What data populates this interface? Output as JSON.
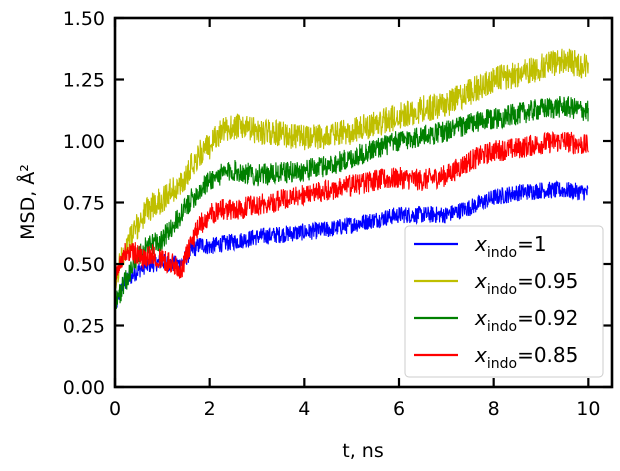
{
  "chart_data": {
    "type": "line",
    "xlabel": "t, ns",
    "ylabel": "MSD, Å²",
    "xlim": [
      0,
      10.5
    ],
    "ylim": [
      0,
      1.5
    ],
    "xticks": [
      "0",
      "2",
      "4",
      "6",
      "8",
      "10"
    ],
    "yticks": [
      "0.00",
      "0.25",
      "0.50",
      "0.75",
      "1.00",
      "1.25",
      "1.50"
    ],
    "grid": false,
    "legend_position": "lower-right",
    "series": [
      {
        "name": "x_indo=1",
        "legend_main": "x",
        "legend_sub": "indo",
        "legend_value": "=1",
        "color": "#0000ff",
        "x": [
          0,
          0.1,
          0.2,
          0.4,
          0.6,
          0.8,
          1.0,
          1.2,
          1.4,
          1.6,
          1.8,
          2.0,
          2.2,
          2.5,
          3.0,
          3.5,
          4.0,
          4.5,
          5.0,
          5.5,
          6.0,
          6.5,
          7.0,
          7.5,
          8.0,
          8.5,
          9.0,
          9.5,
          10.0
        ],
        "values": [
          0.32,
          0.38,
          0.42,
          0.46,
          0.49,
          0.5,
          0.51,
          0.5,
          0.5,
          0.55,
          0.58,
          0.57,
          0.58,
          0.59,
          0.61,
          0.62,
          0.63,
          0.64,
          0.66,
          0.68,
          0.7,
          0.7,
          0.7,
          0.73,
          0.77,
          0.79,
          0.8,
          0.8,
          0.79
        ],
        "amp": 0.035
      },
      {
        "name": "x_indo=0.95",
        "legend_main": "x",
        "legend_sub": "indo",
        "legend_value": "=0.95",
        "color": "#bfbf00",
        "x": [
          0,
          0.1,
          0.2,
          0.4,
          0.6,
          0.8,
          1.0,
          1.2,
          1.4,
          1.6,
          1.8,
          2.0,
          2.2,
          2.5,
          3.0,
          3.5,
          4.0,
          4.5,
          5.0,
          5.5,
          6.0,
          6.5,
          7.0,
          7.5,
          8.0,
          8.5,
          9.0,
          9.5,
          10.0
        ],
        "values": [
          0.4,
          0.5,
          0.56,
          0.63,
          0.7,
          0.74,
          0.76,
          0.8,
          0.82,
          0.9,
          0.95,
          0.98,
          1.03,
          1.06,
          1.04,
          1.03,
          1.01,
          1.02,
          1.04,
          1.07,
          1.1,
          1.13,
          1.15,
          1.2,
          1.25,
          1.27,
          1.3,
          1.33,
          1.3
        ],
        "amp": 0.055
      },
      {
        "name": "x_indo=0.92",
        "legend_main": "x",
        "legend_sub": "indo",
        "legend_value": "=0.92",
        "color": "#008000",
        "x": [
          0,
          0.1,
          0.2,
          0.4,
          0.6,
          0.8,
          1.0,
          1.2,
          1.4,
          1.6,
          1.8,
          2.0,
          2.2,
          2.5,
          3.0,
          3.5,
          4.0,
          4.5,
          5.0,
          5.5,
          6.0,
          6.5,
          7.0,
          7.5,
          8.0,
          8.5,
          9.0,
          9.5,
          10.0
        ],
        "values": [
          0.35,
          0.38,
          0.42,
          0.5,
          0.56,
          0.58,
          0.6,
          0.65,
          0.7,
          0.76,
          0.8,
          0.84,
          0.86,
          0.88,
          0.86,
          0.87,
          0.88,
          0.9,
          0.93,
          0.97,
          1.0,
          1.02,
          1.04,
          1.07,
          1.09,
          1.11,
          1.13,
          1.14,
          1.12
        ],
        "amp": 0.045
      },
      {
        "name": "x_indo=0.85",
        "legend_main": "x",
        "legend_sub": "indo",
        "legend_value": "=0.85",
        "color": "#ff0000",
        "x": [
          0,
          0.1,
          0.2,
          0.4,
          0.6,
          0.8,
          1.0,
          1.2,
          1.4,
          1.6,
          1.8,
          2.0,
          2.2,
          2.5,
          3.0,
          3.5,
          4.0,
          4.5,
          5.0,
          5.5,
          6.0,
          6.5,
          7.0,
          7.5,
          8.0,
          8.5,
          9.0,
          9.5,
          10.0
        ],
        "values": [
          0.45,
          0.5,
          0.54,
          0.55,
          0.52,
          0.54,
          0.52,
          0.5,
          0.48,
          0.58,
          0.66,
          0.7,
          0.72,
          0.72,
          0.74,
          0.76,
          0.78,
          0.8,
          0.82,
          0.84,
          0.85,
          0.84,
          0.86,
          0.92,
          0.96,
          0.97,
          0.99,
          1.0,
          0.98
        ],
        "amp": 0.045
      }
    ]
  }
}
